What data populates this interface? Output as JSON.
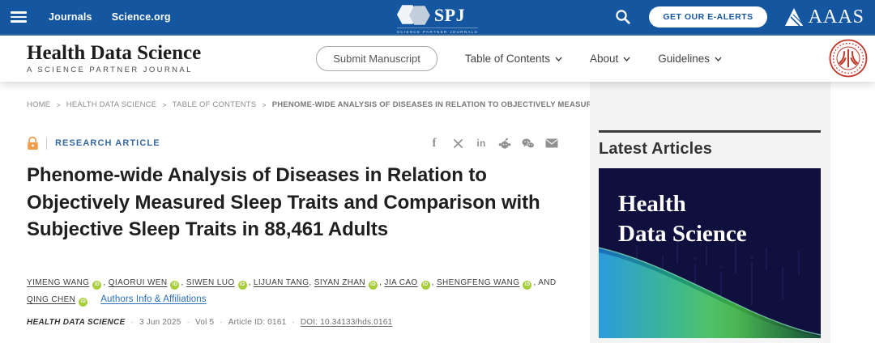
{
  "topbar": {
    "links": [
      "Journals",
      "Science.org"
    ],
    "spj_acronym": "SPJ",
    "spj_caption": "SCIENCE PARTNER JOURNALS",
    "alerts_button": "GET OUR E-ALERTS",
    "aaas_label": "AAAS"
  },
  "header": {
    "brand": "Health Data Science",
    "tagline": "A SCIENCE PARTNER JOURNAL",
    "submit_button": "Submit Manuscript",
    "nav": [
      "Table of Contents",
      "About",
      "Guidelines"
    ]
  },
  "breadcrumb": {
    "items": [
      "HOME",
      "HEALTH DATA SCIENCE",
      "TABLE OF CONTENTS",
      "PHENOME-WIDE ANALYSIS OF DISEASES IN RELATION TO OBJECTIVELY MEASURED SLEEP..."
    ]
  },
  "article": {
    "kicker": "RESEARCH ARTICLE",
    "share_icons": [
      "facebook",
      "x-twitter",
      "linkedin",
      "reddit",
      "wechat",
      "email"
    ],
    "title": "Phenome-wide Analysis of Diseases in Relation to Objectively Measured Sleep Traits and Comparison with Subjective Sleep Traits in 88,461 Adults",
    "authors": [
      {
        "name": "YIMENG WANG",
        "orcid": true
      },
      {
        "name": "QIAORUI WEN",
        "orcid": true
      },
      {
        "name": "SIWEN LUO",
        "orcid": true
      },
      {
        "name": "LIJUAN TANG",
        "orcid": false
      },
      {
        "name": "SIYAN ZHAN",
        "orcid": true
      },
      {
        "name": "JIA CAO",
        "orcid": true
      },
      {
        "name": "SHENGFENG WANG",
        "orcid": true
      },
      {
        "name": "QING CHEN",
        "orcid": true,
        "prefix": "AND "
      }
    ],
    "authors_link": "Authors Info & Affiliations",
    "pub": {
      "journal": "HEALTH DATA SCIENCE",
      "items": [
        "3 Jun 2025",
        "Vol 5",
        "Article ID: 0161"
      ],
      "doi": "DOI: 10.34133/hds.0161",
      "separator": "·"
    }
  },
  "sidebar": {
    "heading": "Latest Articles",
    "cover_line1": "Health",
    "cover_line2": "Data Science"
  },
  "colors": {
    "topbar": "#1457A0",
    "kicker": "#35699f",
    "link": "#2a6db4",
    "orcid": "#a6ce39",
    "lock": "#ee9d4b",
    "cover": "#10103f",
    "pku": "#bf392b"
  }
}
